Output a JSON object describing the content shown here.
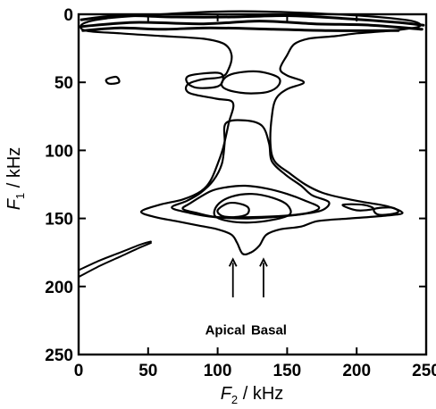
{
  "chart_data": {
    "type": "contour",
    "title": "",
    "xlabel": "F2 / kHz",
    "xlabel_parts": {
      "var": "F",
      "sub": "2",
      "unit": " / kHz"
    },
    "ylabel": "F1 / kHz",
    "ylabel_parts": {
      "var": "F",
      "sub": "1",
      "unit": " / kHz"
    },
    "xlim": [
      0,
      250
    ],
    "ylim": [
      250,
      0
    ],
    "y_inverted": true,
    "x_ticks": [
      0,
      50,
      100,
      150,
      200,
      250
    ],
    "y_ticks": [
      0,
      50,
      100,
      150,
      200,
      250
    ],
    "x_tick_labels": [
      "0",
      "50",
      "100",
      "150",
      "200",
      "250"
    ],
    "y_tick_labels": [
      "0",
      "50",
      "100",
      "150",
      "200",
      "250"
    ],
    "grid": false,
    "legend": null,
    "contours": [
      {
        "level": 1,
        "points": [
          [
            100,
            -2
          ],
          [
            135,
            -2
          ],
          [
            185,
            0
          ],
          [
            215,
            2
          ],
          [
            240,
            5
          ],
          [
            245,
            9
          ],
          [
            225,
            12
          ],
          [
            200,
            14
          ],
          [
            185,
            16
          ],
          [
            165,
            18
          ],
          [
            155,
            22
          ],
          [
            150,
            30
          ],
          [
            145,
            40
          ],
          [
            150,
            45
          ],
          [
            162,
            50
          ],
          [
            150,
            55
          ],
          [
            142,
            62
          ],
          [
            139,
            75
          ],
          [
            138,
            95
          ],
          [
            141,
            108
          ],
          [
            152,
            117
          ],
          [
            163,
            125
          ],
          [
            175,
            131
          ],
          [
            190,
            135
          ],
          [
            205,
            138
          ],
          [
            222,
            141
          ],
          [
            233,
            146
          ],
          [
            220,
            148
          ],
          [
            195,
            150
          ],
          [
            172,
            152
          ],
          [
            160,
            156
          ],
          [
            145,
            158
          ],
          [
            135,
            162
          ],
          [
            130,
            170
          ],
          [
            124,
            175
          ],
          [
            118,
            176
          ],
          [
            114,
            168
          ],
          [
            110,
            162
          ],
          [
            100,
            158
          ],
          [
            85,
            155
          ],
          [
            70,
            152
          ],
          [
            55,
            149
          ],
          [
            45,
            145
          ],
          [
            58,
            140
          ],
          [
            75,
            136
          ],
          [
            88,
            130
          ],
          [
            95,
            122
          ],
          [
            100,
            110
          ],
          [
            104,
            98
          ],
          [
            108,
            80
          ],
          [
            111,
            65
          ],
          [
            99,
            62
          ],
          [
            80,
            58
          ],
          [
            78,
            52
          ],
          [
            88,
            48
          ],
          [
            103,
            46
          ],
          [
            108,
            40
          ],
          [
            110,
            30
          ],
          [
            105,
            22
          ],
          [
            90,
            18
          ],
          [
            60,
            16
          ],
          [
            30,
            14
          ],
          [
            5,
            12
          ],
          [
            3,
            7
          ],
          [
            20,
            3
          ],
          [
            60,
            0
          ]
        ]
      },
      {
        "level": 2,
        "points": [
          [
            110,
            44
          ],
          [
            128,
            42
          ],
          [
            143,
            46
          ],
          [
            144,
            52
          ],
          [
            136,
            57
          ],
          [
            120,
            58
          ],
          [
            106,
            55
          ],
          [
            103,
            50
          ]
        ]
      },
      {
        "level": 3,
        "points": [
          [
            80,
            45
          ],
          [
            100,
            43
          ],
          [
            104,
            47
          ],
          [
            100,
            53
          ],
          [
            85,
            54
          ],
          [
            78,
            50
          ]
        ]
      },
      {
        "level": 4,
        "points": [
          [
            106,
            80
          ],
          [
            120,
            78
          ],
          [
            132,
            82
          ],
          [
            137,
            95
          ],
          [
            139,
            108
          ],
          [
            149,
            118
          ],
          [
            160,
            126
          ],
          [
            168,
            133
          ],
          [
            180,
            138
          ],
          [
            175,
            144
          ],
          [
            160,
            147
          ],
          [
            140,
            149
          ],
          [
            120,
            150
          ],
          [
            98,
            149
          ],
          [
            80,
            146
          ],
          [
            67,
            142
          ],
          [
            78,
            137
          ],
          [
            88,
            131
          ],
          [
            97,
            122
          ],
          [
            103,
            110
          ],
          [
            105,
            95
          ]
        ]
      },
      {
        "level": 5,
        "points": [
          [
            80,
            139
          ],
          [
            95,
            130
          ],
          [
            107,
            127
          ],
          [
            120,
            126
          ],
          [
            135,
            128
          ],
          [
            150,
            132
          ],
          [
            163,
            137
          ],
          [
            173,
            142
          ],
          [
            165,
            146
          ],
          [
            148,
            148
          ],
          [
            125,
            149
          ],
          [
            100,
            149
          ],
          [
            85,
            146
          ],
          [
            75,
            143
          ]
        ]
      },
      {
        "level": 6,
        "points": [
          [
            100,
            140
          ],
          [
            110,
            134
          ],
          [
            125,
            132
          ],
          [
            140,
            135
          ],
          [
            150,
            140
          ],
          [
            152,
            147
          ],
          [
            140,
            151
          ],
          [
            123,
            153
          ],
          [
            108,
            152
          ],
          [
            98,
            148
          ]
        ]
      },
      {
        "level": 7,
        "points": [
          [
            100,
            144
          ],
          [
            107,
            139
          ],
          [
            115,
            139
          ],
          [
            122,
            142
          ],
          [
            121,
            147
          ],
          [
            112,
            149
          ],
          [
            103,
            148
          ]
        ]
      },
      {
        "level": 8,
        "points": [
          [
            190,
            140
          ],
          [
            205,
            140
          ],
          [
            212,
            143
          ],
          [
            200,
            144
          ]
        ]
      },
      {
        "level": 9,
        "points": [
          [
            20,
            48
          ],
          [
            27,
            46
          ],
          [
            29,
            50
          ],
          [
            22,
            51
          ]
        ]
      },
      {
        "level": 10,
        "points": [
          [
            213,
            143
          ],
          [
            225,
            142
          ],
          [
            230,
            145
          ],
          [
            224,
            147
          ],
          [
            215,
            147
          ]
        ]
      }
    ],
    "artifact_lines": [
      [
        [
          0,
          193
        ],
        [
          15,
          185
        ],
        [
          30,
          178
        ],
        [
          45,
          171
        ],
        [
          52,
          168
        ]
      ],
      [
        [
          0,
          188
        ],
        [
          15,
          181
        ],
        [
          30,
          175
        ],
        [
          45,
          169
        ],
        [
          52,
          167
        ]
      ]
    ],
    "top_band": [
      [
        [
          2,
          4
        ],
        [
          30,
          1
        ],
        [
          70,
          2
        ],
        [
          110,
          2
        ],
        [
          150,
          1
        ],
        [
          190,
          3
        ],
        [
          230,
          6
        ],
        [
          248,
          8
        ]
      ],
      [
        [
          2,
          9
        ],
        [
          40,
          6
        ],
        [
          90,
          7
        ],
        [
          130,
          5
        ],
        [
          170,
          7
        ],
        [
          210,
          8
        ],
        [
          247,
          11
        ]
      ],
      [
        [
          3,
          12
        ],
        [
          30,
          10
        ],
        [
          60,
          11
        ],
        [
          95,
          10
        ],
        [
          140,
          11
        ],
        [
          180,
          12
        ],
        [
          230,
          12
        ]
      ]
    ],
    "annotations": [
      {
        "text": "Apical",
        "arrow_x": 111,
        "arrow_from_y": 208,
        "arrow_to_y": 180,
        "label_x": 91,
        "label_y": 232
      },
      {
        "text": "Basal",
        "arrow_x": 133,
        "arrow_from_y": 208,
        "arrow_to_y": 180,
        "label_x": 124,
        "label_y": 232
      }
    ]
  }
}
